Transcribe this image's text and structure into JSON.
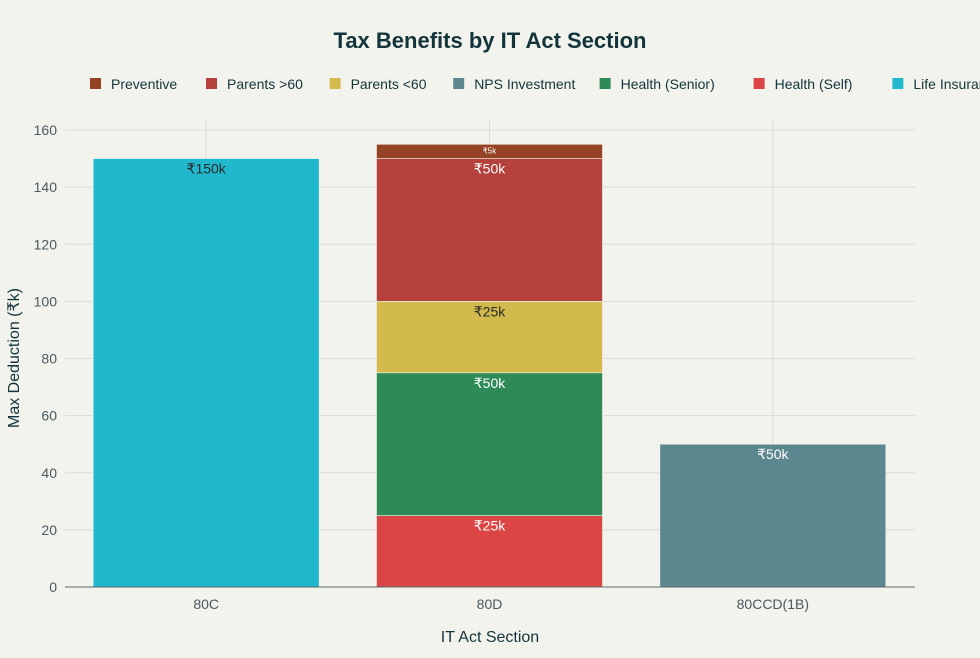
{
  "chart_data": {
    "type": "bar",
    "stacked": true,
    "title": "Tax Benefits by IT Act Section",
    "xlabel": "IT Act Section",
    "ylabel": "Max Deduction (₹k)",
    "ylim": [
      0,
      160
    ],
    "yticks": [
      0,
      20,
      40,
      60,
      80,
      100,
      120,
      140,
      160
    ],
    "grid": true,
    "legend_position": "top",
    "categories": [
      "80C",
      "80D",
      "80CCD(1B)"
    ],
    "series": [
      {
        "name": "Health (Self)",
        "color": "#DB4545",
        "values": [
          0,
          25,
          0
        ],
        "labels": [
          "",
          "₹25k",
          ""
        ]
      },
      {
        "name": "Health (Senior)",
        "color": "#2E8B57",
        "values": [
          0,
          50,
          0
        ],
        "labels": [
          "",
          "₹50k",
          ""
        ]
      },
      {
        "name": "Parents <60",
        "color": "#D2BA4C",
        "values": [
          0,
          25,
          0
        ],
        "labels": [
          "",
          "₹25k",
          ""
        ]
      },
      {
        "name": "Parents >60",
        "color": "#B4413C",
        "values": [
          0,
          50,
          0
        ],
        "labels": [
          "",
          "₹50k",
          ""
        ]
      },
      {
        "name": "Preventive",
        "color": "#964325",
        "values": [
          0,
          5,
          0
        ],
        "labels": [
          "",
          "₹5k",
          ""
        ]
      },
      {
        "name": "NPS Investment",
        "color": "#5D878F",
        "values": [
          0,
          0,
          50
        ],
        "labels": [
          "",
          "",
          "₹50k"
        ]
      },
      {
        "name": "Life Insurance",
        "color": "#1FB8CD",
        "values": [
          150,
          0,
          0
        ],
        "labels": [
          "₹150k",
          "",
          ""
        ]
      }
    ],
    "legend_order": [
      "Preventive",
      "Parents >60",
      "Parents <60",
      "NPS Investment",
      "Health (Senior)",
      "Health (Self)",
      "Life Insurance"
    ]
  }
}
